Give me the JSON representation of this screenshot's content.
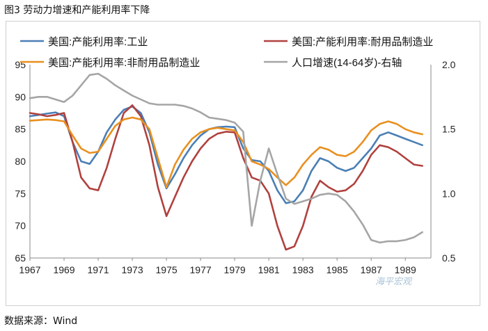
{
  "figure_title": "图3 劳动力增速和产能利用率下降",
  "source_text": "数据来源：Wind",
  "watermark_text": "海平宏观",
  "colors": {
    "industry": "#4a7fb5",
    "durable": "#b0413e",
    "nondurable": "#e8901f",
    "population": "#a5a5a5"
  },
  "chart_data": {
    "type": "line",
    "title": "",
    "xlabel": "",
    "ylabel": "",
    "y_right_label": "",
    "xlim": [
      1967,
      1990.5
    ],
    "ylim": [
      65,
      95
    ],
    "y_right_lim": [
      0.5,
      2.0
    ],
    "x_ticks": [
      1967,
      1969,
      1971,
      1973,
      1975,
      1977,
      1979,
      1981,
      1983,
      1985,
      1987,
      1989
    ],
    "x_tick_labels": [
      "1967",
      "1969",
      "1971",
      "1973",
      "1975",
      "1977",
      "1979",
      "1981",
      "1983",
      "1985",
      "1987",
      "1989"
    ],
    "y_ticks": [
      65,
      70,
      75,
      80,
      85,
      90,
      95
    ],
    "y_tick_labels": [
      "65",
      "70",
      "75",
      "80",
      "85",
      "90",
      "95"
    ],
    "y_right_ticks": [
      0.5,
      1.0,
      1.5,
      2.0
    ],
    "y_right_tick_labels": [
      "0.5",
      "1.0",
      "1.5",
      "2.0"
    ],
    "legend_position": "top",
    "series": [
      {
        "key": "industry",
        "name": "美国:产能利用率:工业",
        "axis": "left",
        "x": [
          1967,
          1967.5,
          1968,
          1968.5,
          1969,
          1969.5,
          1970,
          1970.5,
          1971,
          1971.5,
          1972,
          1972.5,
          1973,
          1973.5,
          1974,
          1974.5,
          1975,
          1975.5,
          1976,
          1976.5,
          1977,
          1977.5,
          1978,
          1978.5,
          1979,
          1979.5,
          1980,
          1980.5,
          1981,
          1981.5,
          1982,
          1982.5,
          1983,
          1983.5,
          1984,
          1984.5,
          1985,
          1985.5,
          1986,
          1986.5,
          1987,
          1987.5,
          1988,
          1988.5,
          1989,
          1989.5,
          1990
        ],
        "values": [
          87.0,
          87.2,
          87.4,
          87.6,
          87.0,
          83.0,
          80.0,
          79.6,
          81.5,
          84.5,
          86.5,
          88.0,
          88.5,
          87.5,
          84.5,
          79.5,
          75.8,
          78.0,
          80.5,
          82.5,
          84.0,
          85.0,
          85.3,
          85.4,
          85.3,
          82.0,
          80.2,
          80.0,
          78.5,
          75.5,
          73.5,
          73.8,
          75.5,
          78.5,
          80.5,
          80.0,
          79.0,
          78.5,
          79.0,
          80.5,
          82.0,
          84.0,
          84.5,
          84.0,
          83.5,
          83.0,
          82.5
        ]
      },
      {
        "key": "durable",
        "name": "美国:产能利用率:耐用品制造业",
        "axis": "left",
        "x": [
          1967,
          1967.5,
          1968,
          1968.5,
          1969,
          1969.5,
          1970,
          1970.5,
          1971,
          1971.5,
          1972,
          1972.5,
          1973,
          1973.5,
          1974,
          1974.5,
          1975,
          1975.5,
          1976,
          1976.5,
          1977,
          1977.5,
          1978,
          1978.5,
          1979,
          1979.5,
          1980,
          1980.5,
          1981,
          1981.5,
          1982,
          1982.5,
          1983,
          1983.5,
          1984,
          1984.5,
          1985,
          1985.5,
          1986,
          1986.5,
          1987,
          1987.5,
          1988,
          1988.5,
          1989,
          1989.5,
          1990
        ],
        "values": [
          87.5,
          87.3,
          87.0,
          87.2,
          87.5,
          83.0,
          77.5,
          75.8,
          75.5,
          79.0,
          83.5,
          87.5,
          88.7,
          87.0,
          82.5,
          76.0,
          71.5,
          74.5,
          77.5,
          80.0,
          82.0,
          83.5,
          84.3,
          84.6,
          84.5,
          80.5,
          77.5,
          77.0,
          75.0,
          70.0,
          66.3,
          66.8,
          70.0,
          74.5,
          77.0,
          76.0,
          75.3,
          75.5,
          76.5,
          78.5,
          81.0,
          82.5,
          82.2,
          81.5,
          80.5,
          79.5,
          79.3
        ]
      },
      {
        "key": "nondurable",
        "name": "美国:产能利用率:非耐用品制造业",
        "axis": "left",
        "x": [
          1967,
          1967.5,
          1968,
          1968.5,
          1969,
          1969.5,
          1970,
          1970.5,
          1971,
          1971.5,
          1972,
          1972.5,
          1973,
          1973.5,
          1974,
          1974.5,
          1975,
          1975.5,
          1976,
          1976.5,
          1977,
          1977.5,
          1978,
          1978.5,
          1979,
          1979.5,
          1980,
          1980.5,
          1981,
          1981.5,
          1982,
          1982.5,
          1983,
          1983.5,
          1984,
          1984.5,
          1985,
          1985.5,
          1986,
          1986.5,
          1987,
          1987.5,
          1988,
          1988.5,
          1989,
          1989.5,
          1990
        ],
        "values": [
          86.3,
          86.4,
          86.5,
          86.4,
          86.2,
          84.0,
          82.0,
          81.3,
          81.5,
          83.5,
          85.5,
          86.5,
          86.8,
          86.5,
          85.0,
          80.5,
          76.0,
          79.5,
          81.8,
          83.5,
          84.5,
          85.0,
          85.2,
          85.0,
          84.8,
          83.0,
          80.0,
          79.5,
          78.8,
          77.5,
          76.3,
          77.5,
          79.5,
          81.0,
          82.2,
          81.8,
          81.0,
          80.8,
          81.5,
          83.0,
          84.8,
          85.8,
          86.2,
          85.8,
          85.0,
          84.5,
          84.2
        ]
      },
      {
        "key": "population",
        "name": "人口增速(14-64岁)-右轴",
        "axis": "right",
        "x": [
          1967,
          1967.5,
          1968,
          1968.5,
          1969,
          1969.5,
          1970,
          1970.5,
          1971,
          1971.5,
          1972,
          1972.5,
          1973,
          1973.5,
          1974,
          1974.5,
          1975,
          1975.5,
          1976,
          1976.5,
          1977,
          1977.5,
          1978,
          1978.5,
          1979,
          1979.5,
          1980,
          1980.5,
          1981,
          1981.5,
          1982,
          1982.5,
          1983,
          1983.5,
          1984,
          1984.5,
          1985,
          1985.5,
          1986,
          1986.5,
          1987,
          1987.5,
          1988,
          1988.5,
          1989,
          1989.5,
          1990
        ],
        "values": [
          1.74,
          1.75,
          1.75,
          1.73,
          1.71,
          1.76,
          1.84,
          1.92,
          1.93,
          1.89,
          1.84,
          1.8,
          1.76,
          1.73,
          1.7,
          1.69,
          1.69,
          1.69,
          1.68,
          1.66,
          1.63,
          1.59,
          1.58,
          1.57,
          1.55,
          1.48,
          0.75,
          1.1,
          1.35,
          1.15,
          0.96,
          0.92,
          0.94,
          0.96,
          0.99,
          1.0,
          0.99,
          0.94,
          0.86,
          0.76,
          0.64,
          0.62,
          0.63,
          0.63,
          0.64,
          0.66,
          0.7
        ]
      }
    ]
  }
}
